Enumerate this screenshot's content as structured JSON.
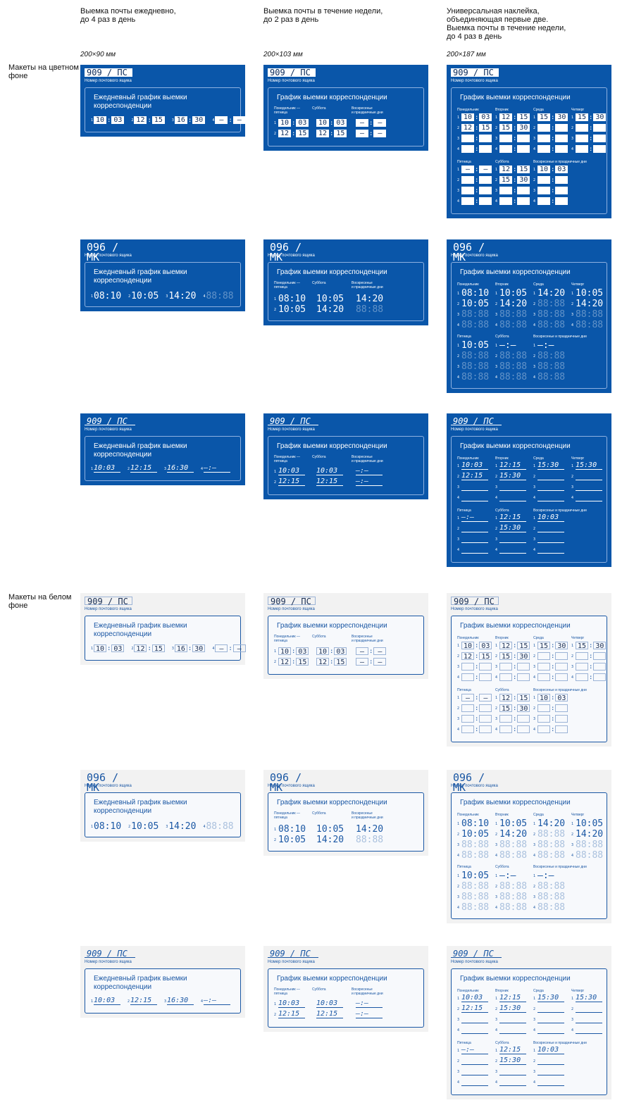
{
  "headers": [
    {
      "text": "Выемка почты ежедневно,\nдо 4 раз в день",
      "dim": "200×90 мм"
    },
    {
      "text": "Выемка почты в течение недели,\nдо 2 раз в день",
      "dim": "200×103 мм"
    },
    {
      "text": "Универсальная наклейка,\nобъединяющая первые две.\nВыемка почты в течение недели,\nдо 4 раз в день",
      "dim": "200×187 мм"
    }
  ],
  "sections": {
    "color": "Макеты на цветном\nфоне",
    "white": "Макеты на белом\nфоне"
  },
  "box_sub": "Номер почтового ящика",
  "daily_title": "Ежедневный график выемки корреспонденции",
  "weekly_title": "График выемки корреспонденции",
  "weekly_cols": [
    "Понедельник —\nпятница",
    "Суббота",
    "Воскресенье\nи праздничные дни"
  ],
  "uni_cols_top": [
    "Понедельник",
    "Вторник",
    "Среда",
    "Четверг"
  ],
  "uni_cols_bottom": [
    "Пятница",
    "Суббота",
    "Воскресенье и праздничные дни"
  ],
  "variants": [
    {
      "num": "909 / ПС",
      "style": "box",
      "daily": [
        "10:03",
        "12:15",
        "16:30",
        "—:—"
      ],
      "weekly": [
        [
          "10:03",
          "10:03",
          "—:—"
        ],
        [
          "12:15",
          "12:15",
          "—:—"
        ]
      ],
      "uni_top": [
        [
          "10:03",
          "12:15",
          "15:30",
          "15:30"
        ],
        [
          "12:15",
          "15:30",
          "",
          ""
        ]
      ],
      "uni_bottom": [
        [
          "—:—",
          "12:15",
          "10:03"
        ],
        [
          "",
          "15:30",
          ""
        ]
      ]
    },
    {
      "num": "096 / МК",
      "style": "plain",
      "daily": [
        "08:10",
        "10:05",
        "14:20",
        ""
      ],
      "weekly": [
        [
          "08:10",
          "10:05",
          "14:20"
        ],
        [
          "10:05",
          "14:20",
          ""
        ]
      ],
      "uni_top": [
        [
          "08:10",
          "10:05",
          "14:20",
          "10:05"
        ],
        [
          "10:05",
          "14:20",
          "",
          "14:20"
        ]
      ],
      "uni_bottom": [
        [
          "10:05",
          "—:—",
          "—:—"
        ],
        [
          "",
          "",
          ""
        ]
      ]
    },
    {
      "num": "909 / ПС",
      "style": "script",
      "daily": [
        "10:03",
        "12:15",
        "16:30",
        "—:—"
      ],
      "weekly": [
        [
          "10:03",
          "10:03",
          "—:—"
        ],
        [
          "12:15",
          "12:15",
          "—:—"
        ]
      ],
      "uni_top": [
        [
          "10:03",
          "12:15",
          "15:30",
          "15:30"
        ],
        [
          "12:15",
          "15:30",
          "",
          ""
        ]
      ],
      "uni_bottom": [
        [
          "—:—",
          "12:15",
          "10:03"
        ],
        [
          "",
          "15:30",
          ""
        ]
      ]
    }
  ]
}
